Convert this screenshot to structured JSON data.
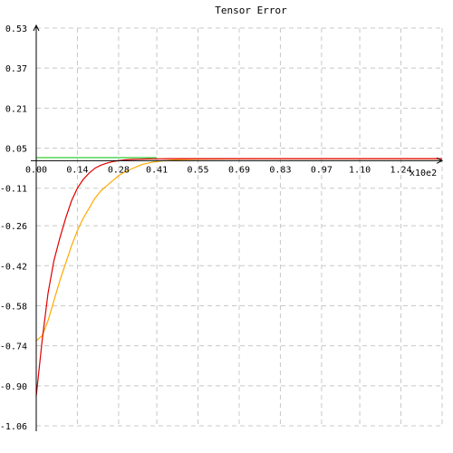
{
  "chart_data": {
    "type": "line",
    "title": "Tensor Error",
    "x_scale_label": "x10e2",
    "xlim": [
      0,
      1.38
    ],
    "ylim": [
      -1.06,
      0.53
    ],
    "x_ticks": [
      "0.00",
      "0.14",
      "0.28",
      "0.41",
      "0.55",
      "0.69",
      "0.83",
      "0.97",
      "1.10",
      "1.24"
    ],
    "y_ticks": [
      "0.53",
      "0.37",
      "0.21",
      "0.05",
      "-0.11",
      "-0.26",
      "-0.42",
      "-0.58",
      "-0.74",
      "-0.90",
      "-1.06"
    ],
    "grid": true,
    "series": [
      {
        "color": "#ffaa00",
        "x": [
          0,
          0.02,
          0.04,
          0.06,
          0.08,
          0.1,
          0.12,
          0.14,
          0.16,
          0.18,
          0.2,
          0.22,
          0.24,
          0.26,
          0.28,
          0.3,
          0.32,
          0.34,
          0.36,
          0.38,
          0.4,
          0.42,
          0.45,
          0.5,
          0.55,
          0.6,
          0.65,
          0.7,
          0.75,
          0.8,
          0.83,
          0.9,
          1.0,
          1.1,
          1.2,
          1.3,
          1.38
        ],
        "y": [
          -0.72,
          -0.7,
          -0.64,
          -0.56,
          -0.48,
          -0.41,
          -0.34,
          -0.28,
          -0.23,
          -0.19,
          -0.15,
          -0.12,
          -0.1,
          -0.08,
          -0.06,
          -0.045,
          -0.035,
          -0.025,
          -0.015,
          -0.01,
          -0.005,
          -0.002,
          0.002,
          0.005,
          0.006,
          0.0065,
          0.007,
          0.0075,
          0.0078,
          0.008,
          0.008,
          0.008,
          0.008,
          0.008,
          0.008,
          0.008,
          0.008
        ]
      },
      {
        "color": "#e00000",
        "x": [
          0,
          0.02,
          0.04,
          0.06,
          0.08,
          0.1,
          0.12,
          0.14,
          0.16,
          0.18,
          0.2,
          0.22,
          0.24,
          0.26,
          0.28,
          0.3,
          0.32,
          0.35,
          0.38,
          0.41,
          0.45,
          0.5,
          0.6,
          0.7,
          0.8,
          0.9,
          1.0,
          1.1,
          1.2,
          1.3,
          1.38
        ],
        "y": [
          -0.94,
          -0.72,
          -0.53,
          -0.4,
          -0.31,
          -0.23,
          -0.16,
          -0.11,
          -0.075,
          -0.05,
          -0.03,
          -0.018,
          -0.01,
          -0.004,
          0.0,
          0.003,
          0.005,
          0.006,
          0.007,
          0.0075,
          0.008,
          0.008,
          0.008,
          0.008,
          0.008,
          0.008,
          0.008,
          0.008,
          0.008,
          0.008,
          0.008
        ]
      },
      {
        "color": "#33cc33",
        "x": [
          0,
          0.2,
          0.4,
          0.41
        ],
        "y": [
          0.012,
          0.012,
          0.012,
          0.012
        ]
      }
    ]
  }
}
